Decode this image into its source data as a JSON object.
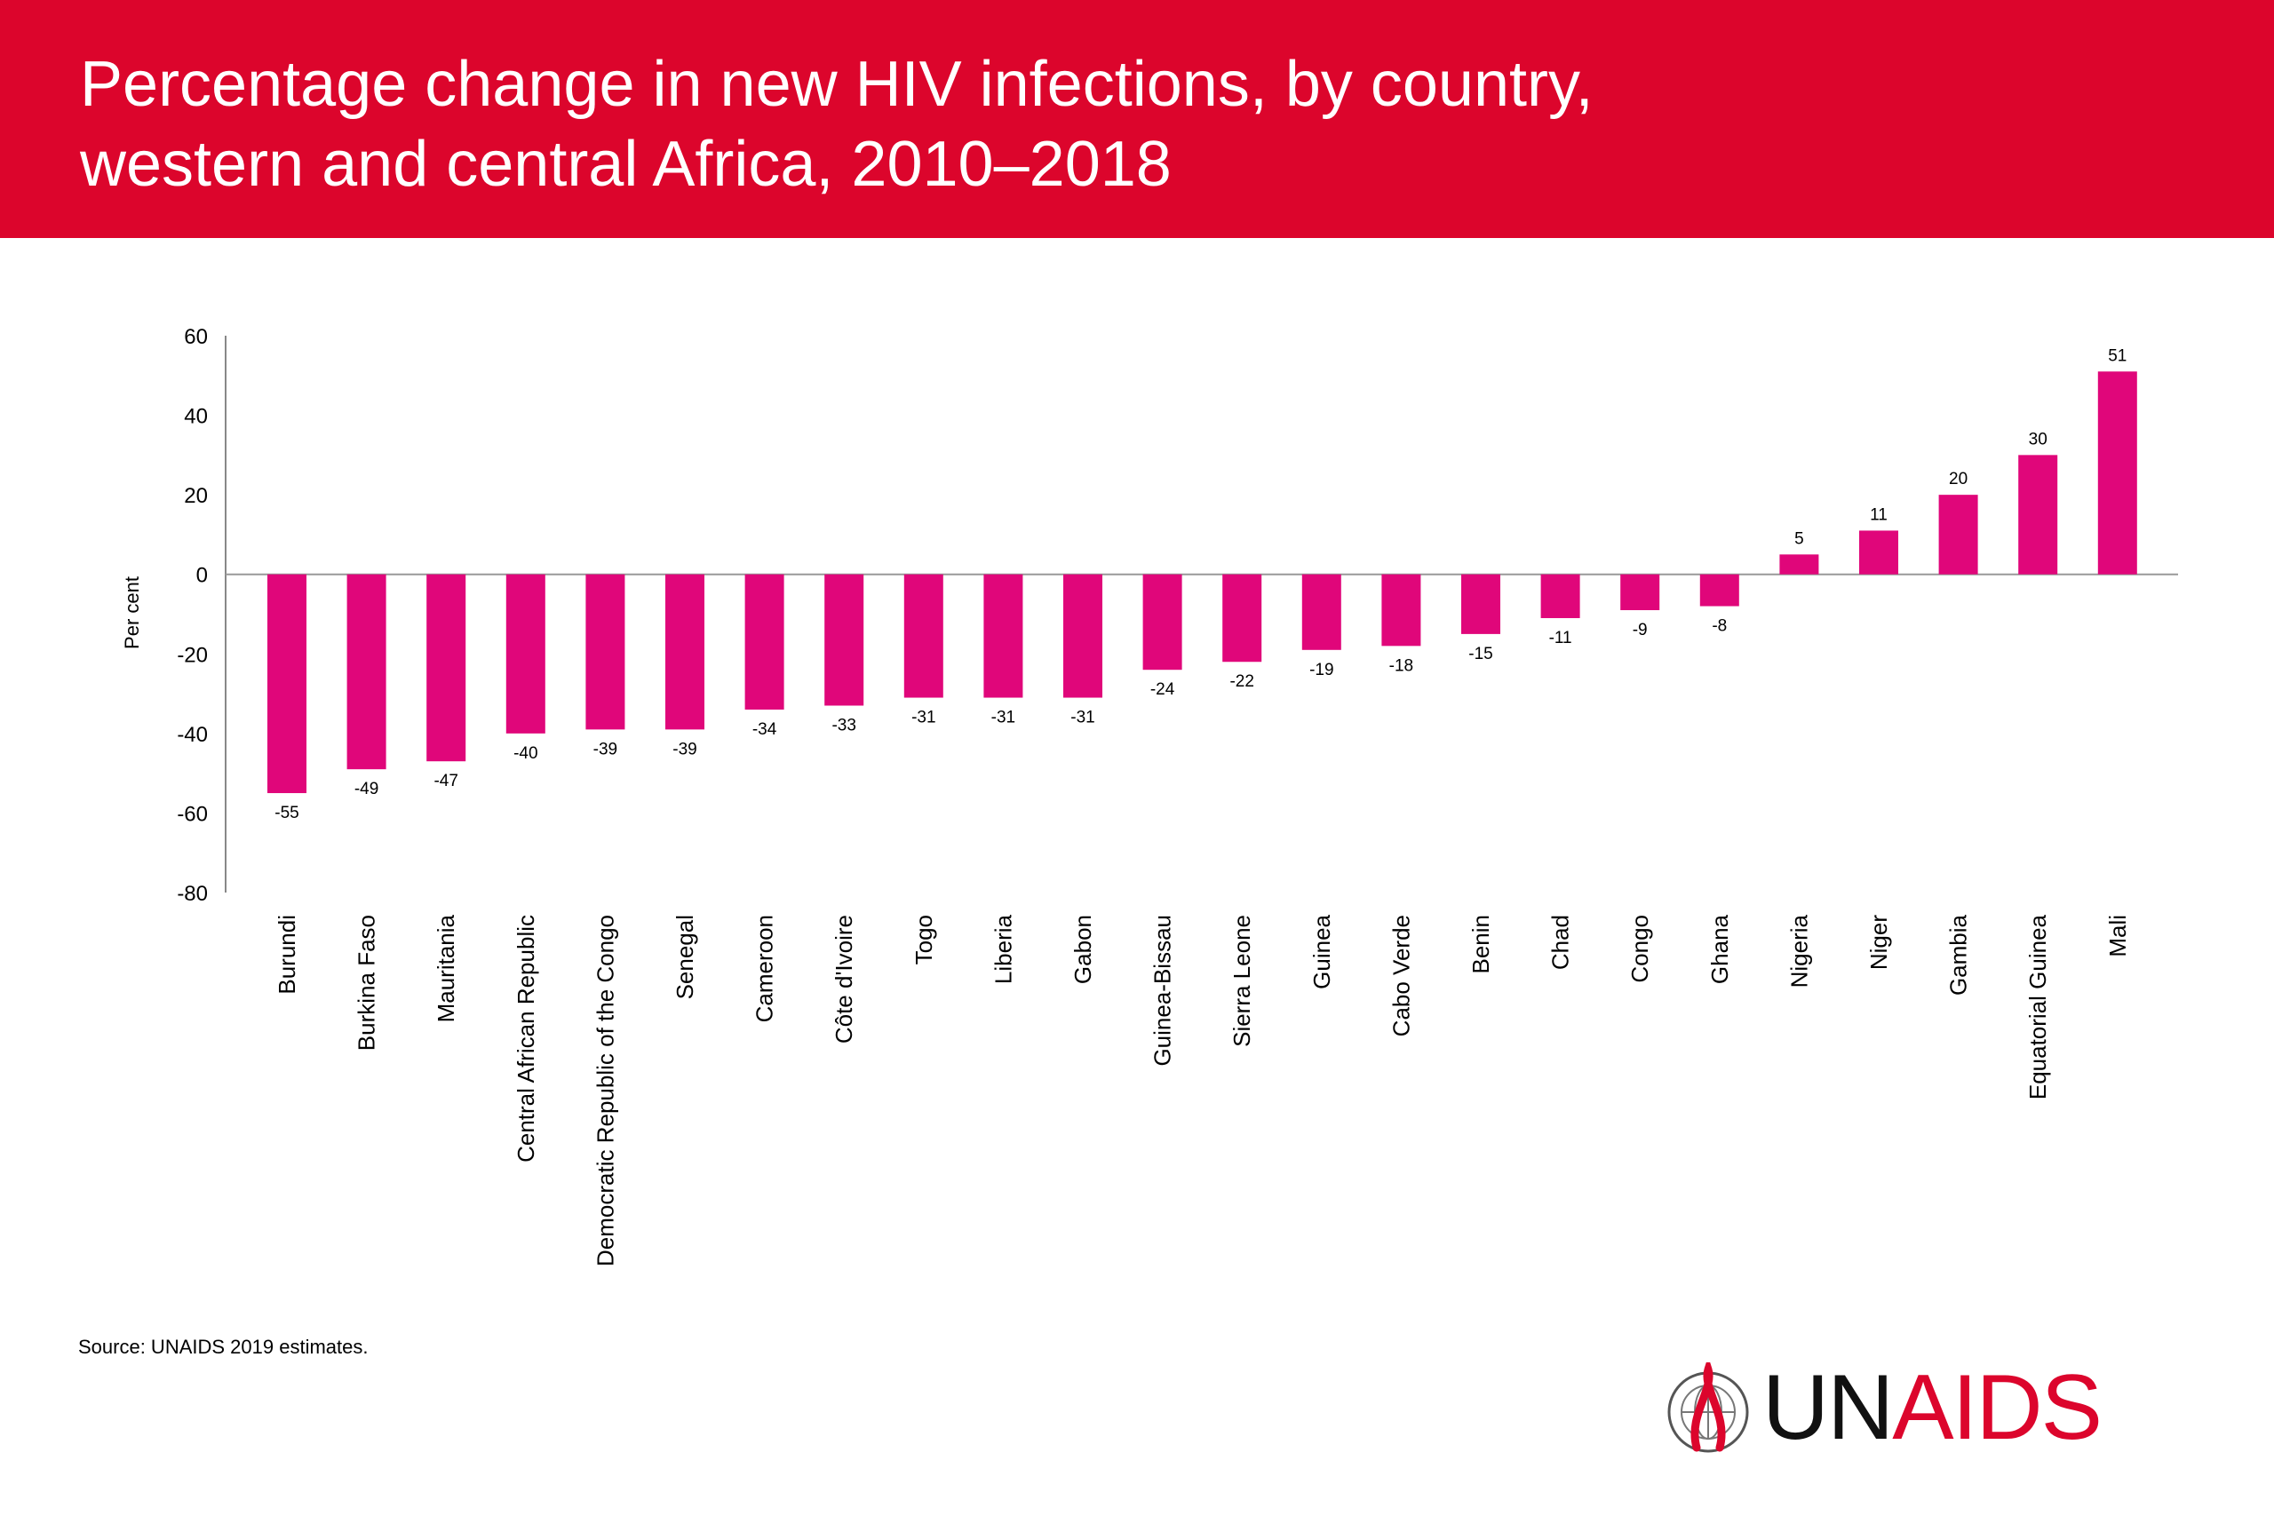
{
  "header": {
    "title_line1": "Percentage change in new HIV infections, by country,",
    "title_line2": "western and central Africa, 2010–2018"
  },
  "footer": {
    "source": "Source: UNAIDS 2019 estimates.",
    "logo_un": "UN",
    "logo_aids": "AIDS"
  },
  "colors": {
    "banner": "#dc052c",
    "bar": "#e0067a"
  },
  "chart_data": {
    "type": "bar",
    "ylabel": "Per cent",
    "xlabel": "",
    "ylim": [
      -80,
      60
    ],
    "yticks": [
      60,
      40,
      20,
      0,
      -20,
      -40,
      -60,
      -80
    ],
    "grid": false,
    "legend": "none",
    "categories": [
      "Burundi",
      "Burkina Faso",
      "Mauritania",
      "Central African Republic",
      "Democratic Republic of the Congo",
      "Senegal",
      "Cameroon",
      "Côte d'Ivoire",
      "Togo",
      "Liberia",
      "Gabon",
      "Guinea-Bissau",
      "Sierra Leone",
      "Guinea",
      "Cabo Verde",
      "Benin",
      "Chad",
      "Congo",
      "Ghana",
      "Nigeria",
      "Niger",
      "Gambia",
      "Equatorial Guinea",
      "Mali"
    ],
    "values": [
      -55,
      -49,
      -47,
      -40,
      -39,
      -39,
      -34,
      -33,
      -31,
      -31,
      -31,
      -24,
      -22,
      -19,
      -18,
      -15,
      -11,
      -9,
      -8,
      5,
      11,
      20,
      30,
      51
    ]
  }
}
